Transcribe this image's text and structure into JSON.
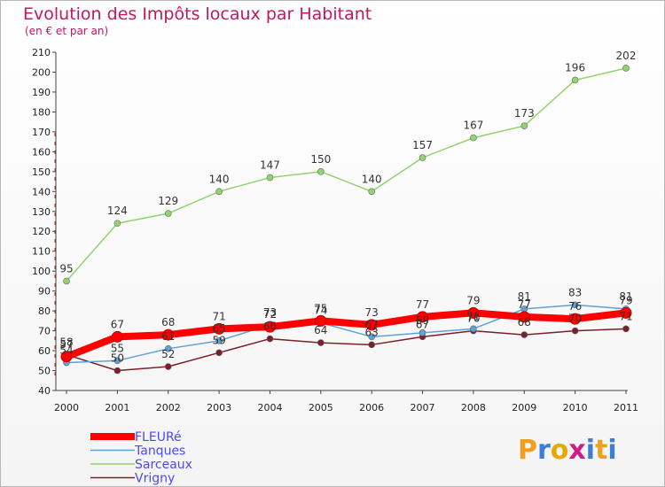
{
  "chart_data": {
    "type": "line",
    "title": "Evolution des Impôts locaux par Habitant",
    "subtitle": "(en € et par an)",
    "x": [
      "2000",
      "2001",
      "2002",
      "2003",
      "2004",
      "2005",
      "2006",
      "2007",
      "2008",
      "2009",
      "2010",
      "2011"
    ],
    "ylim": [
      40,
      210
    ],
    "yticks": [
      40,
      50,
      60,
      70,
      80,
      90,
      100,
      110,
      120,
      130,
      140,
      150,
      160,
      170,
      180,
      190,
      200,
      210
    ],
    "grid": false,
    "legend_position": "bottom-left",
    "series": [
      {
        "name": "Sarceaux",
        "color": "#92d36e",
        "values": [
          95,
          124,
          129,
          140,
          147,
          150,
          140,
          157,
          167,
          173,
          196,
          202
        ]
      },
      {
        "name": "Vrigny",
        "color": "#7a1f2b",
        "values": [
          58,
          50,
          52,
          59,
          66,
          64,
          63,
          67,
          70,
          68,
          70,
          71
        ]
      },
      {
        "name": "Tanques",
        "color": "#5ea2d8",
        "values": [
          54,
          55,
          61,
          65,
          73,
          74,
          67,
          69,
          71,
          81,
          83,
          81
        ]
      },
      {
        "name": "FLEURé",
        "color": "#ff0000",
        "values": [
          57,
          67,
          68,
          71,
          72,
          75,
          73,
          77,
          79,
          77,
          76,
          79
        ]
      }
    ],
    "legend_order": [
      "FLEURé",
      "Tanques",
      "Sarceaux",
      "Vrigny"
    ]
  },
  "logo": {
    "text": "Proxiti",
    "letters": [
      "P",
      "r",
      "o",
      "x",
      "i",
      "t",
      "i"
    ],
    "colors": [
      "#f0a020",
      "#3a7fd5",
      "#e8a800",
      "#d01c8b",
      "#3a7fd5",
      "#f0a020",
      "#3a7fd5"
    ]
  }
}
